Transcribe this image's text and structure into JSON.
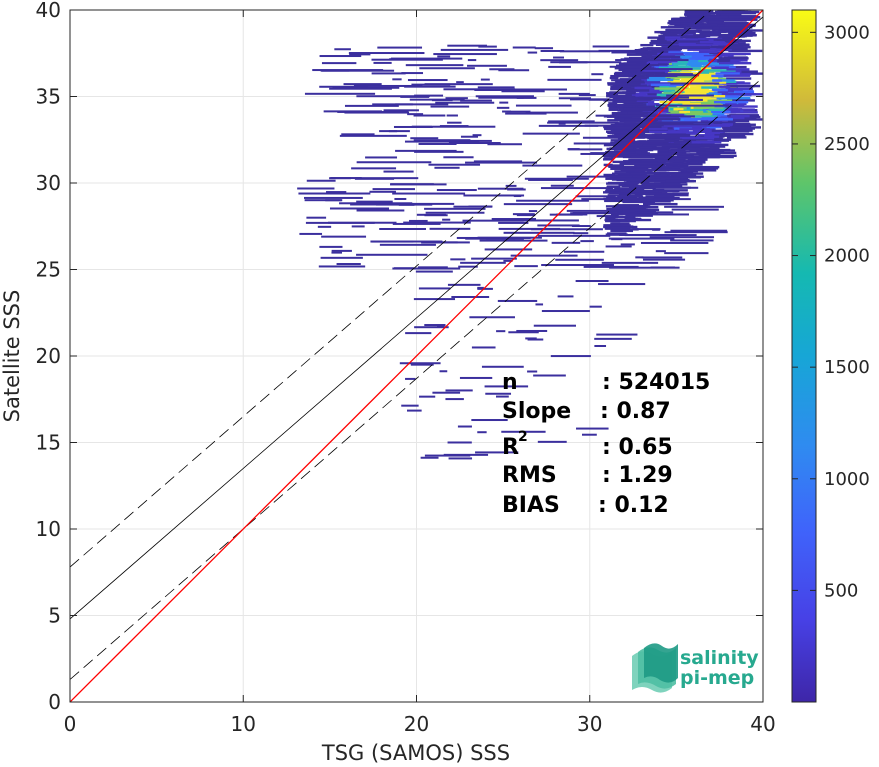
{
  "chart_data": {
    "type": "heatmap",
    "xlabel": "TSG (SAMOS) SSS",
    "ylabel": "Satellite SSS",
    "xlim": [
      0,
      40
    ],
    "ylim": [
      0,
      40
    ],
    "x_ticks": [
      0,
      10,
      20,
      30,
      40
    ],
    "y_ticks": [
      0,
      5,
      10,
      15,
      20,
      25,
      30,
      35,
      40
    ],
    "grid": true,
    "colorbar": {
      "range": [
        0,
        3100
      ],
      "ticks": [
        500,
        1000,
        1500,
        2000,
        2500,
        3000
      ],
      "colormap": "parula"
    },
    "lines": {
      "one_to_one": {
        "slope": 1,
        "intercept": 0,
        "color": "#ff0000"
      },
      "regression": {
        "slope": 0.87,
        "intercept": 4.8,
        "color": "#000000"
      },
      "upper_bound": {
        "slope": 0.87,
        "intercept": 7.8,
        "color": "#000000",
        "dash": true
      },
      "lower_bound": {
        "slope": 0.87,
        "intercept": 1.3,
        "color": "#000000",
        "dash": true
      }
    },
    "density": {
      "core": {
        "x": 34.5,
        "y": 34.6
      },
      "peak": {
        "x": 35.3,
        "y": 35.4
      }
    },
    "stats": [
      {
        "label": "n",
        "value": ": 524015"
      },
      {
        "label": "Slope",
        "value": ": 0.87"
      },
      {
        "label": "R",
        "superscript": "2",
        "value": ": 0.65"
      },
      {
        "label": "RMS",
        "value": ": 1.29"
      },
      {
        "label": "BIAS",
        "value": ": 0.12"
      }
    ]
  },
  "logo": {
    "line1": "salinity",
    "line2": "pi-mep"
  }
}
